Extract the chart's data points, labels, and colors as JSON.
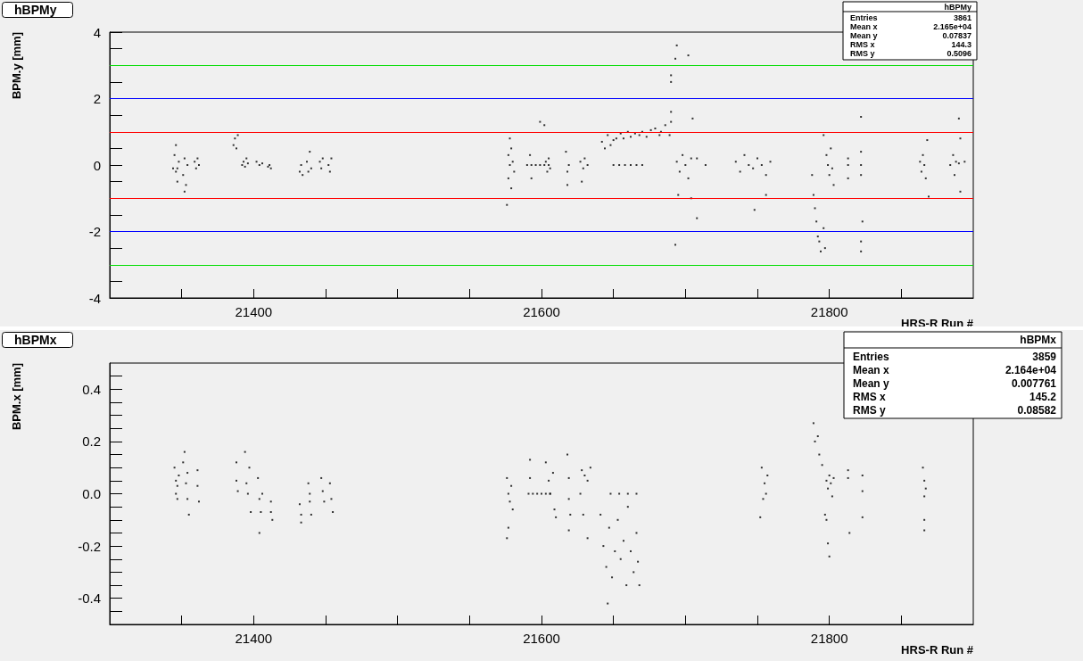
{
  "chart_data": [
    {
      "type": "scatter",
      "title": "hBPMy",
      "xlabel": "HRS-R Run #",
      "ylabel": "BPM.y [mm]",
      "marker": "square",
      "grid": false,
      "xlim": [
        21300,
        21900
      ],
      "xticks": [
        {
          "value": 21350,
          "label": null
        },
        21400,
        {
          "value": 21450,
          "label": null
        },
        {
          "value": 21500,
          "label": null
        },
        {
          "value": 21550,
          "label": null
        },
        21600,
        {
          "value": 21650,
          "label": null
        },
        {
          "value": 21700,
          "label": null
        },
        {
          "value": 21750,
          "label": null
        },
        21800,
        {
          "value": 21850,
          "label": null
        }
      ],
      "ylim": [
        -4,
        4
      ],
      "yticks": [
        -4,
        {
          "value": -3.5,
          "label": null
        },
        {
          "value": -3,
          "label": null
        },
        {
          "value": -2.5,
          "label": null
        },
        -2,
        {
          "value": -1.5,
          "label": null
        },
        {
          "value": -1,
          "label": null
        },
        {
          "value": -0.5,
          "label": null
        },
        0,
        {
          "value": 0.5,
          "label": null
        },
        {
          "value": 1,
          "label": null
        },
        {
          "value": 1.5,
          "label": null
        },
        2,
        {
          "value": 2.5,
          "label": null
        },
        {
          "value": 3,
          "label": null
        },
        {
          "value": 3.5,
          "label": null
        },
        4
      ],
      "ref_lines": [
        {
          "axis": "y",
          "value": 3,
          "color": "#00dd00"
        },
        {
          "axis": "y",
          "value": 2,
          "color": "#0000ff"
        },
        {
          "axis": "y",
          "value": 1,
          "color": "#ff0000"
        },
        {
          "axis": "y",
          "value": -1,
          "color": "#ff0000"
        },
        {
          "axis": "y",
          "value": -2,
          "color": "#0000ff"
        },
        {
          "axis": "y",
          "value": -3,
          "color": "#00dd00"
        }
      ],
      "annotations": [
        "hBPMy",
        "Entries",
        "3861",
        "Mean x",
        "2.165e+04",
        "Mean y",
        "0.07837",
        "RMS x",
        "144.3",
        "RMS y",
        "0.5096"
      ],
      "series": [
        {
          "color": "#000000",
          "x": [
            21344,
            21345,
            21346,
            21346,
            21347,
            21347,
            21348,
            21351,
            21352,
            21352,
            21353,
            21354,
            21359,
            21360,
            21361,
            21362,
            21386,
            21387,
            21388,
            21389,
            21392,
            21393,
            21394,
            21395,
            21396,
            21402,
            21404,
            21406,
            21410,
            21411,
            21412,
            21432,
            21433,
            21434,
            21437,
            21438,
            21439,
            21440,
            21446,
            21447,
            21448,
            21452,
            21453,
            21454,
            21576,
            21577,
            21577,
            21578,
            21578,
            21579,
            21579,
            21580,
            21581,
            21599,
            21602,
            21590,
            21593,
            21596,
            21599,
            21602,
            21605,
            21592,
            21593,
            21603,
            21604,
            21605,
            21606,
            21617,
            21618,
            21619,
            21618,
            21627,
            21629,
            21630,
            21632,
            21628,
            21642,
            21644,
            21646,
            21648,
            21650,
            21652,
            21655,
            21657,
            21660,
            21662,
            21665,
            21668,
            21670,
            21673,
            21676,
            21650,
            21654,
            21658,
            21662,
            21666,
            21670,
            21679,
            21682,
            21683,
            21686,
            21690,
            21690,
            21689,
            21693,
            21694,
            21702,
            21690,
            21690,
            21694,
            21696,
            21698,
            21700,
            21702,
            21704,
            21695,
            21704,
            21708,
            21693,
            21705,
            21708,
            21714,
            21735,
            21738,
            21741,
            21744,
            21747,
            21750,
            21753,
            21756,
            21759,
            21748,
            21756,
            21788,
            21789,
            21790,
            21791,
            21792,
            21793,
            21794,
            21796,
            21797,
            21796,
            21798,
            21799,
            21800,
            21801,
            21802,
            21803,
            21813,
            21813,
            21813,
            21822,
            21822,
            21822,
            21822,
            21823,
            21822,
            21822,
            21863,
            21864,
            21865,
            21866,
            21867,
            21868,
            21869,
            21884,
            21886,
            21887,
            21888,
            21890,
            21894,
            21890,
            21891,
            21891
          ],
          "values": [
            -0.1,
            0.3,
            -0.2,
            0.6,
            -0.1,
            -0.5,
            0.1,
            -0.3,
            -0.8,
            0.2,
            -0.6,
            0.0,
            0.1,
            -0.1,
            0.2,
            0.0,
            0.6,
            0.8,
            0.5,
            0.9,
            0.0,
            0.1,
            -0.05,
            0.2,
            0.05,
            0.1,
            0.0,
            0.05,
            -0.05,
            0.0,
            -0.1,
            -0.2,
            0.0,
            -0.3,
            0.1,
            -0.2,
            0.4,
            -0.1,
            0.1,
            -0.1,
            0.2,
            0.0,
            -0.2,
            0.2,
            -1.2,
            0.3,
            -0.4,
            0.8,
            0.0,
            -0.7,
            0.5,
            0.1,
            -0.2,
            1.3,
            1.2,
            0,
            0,
            0,
            0,
            0,
            0,
            0.3,
            -0.4,
            0.1,
            -0.2,
            0.2,
            -0.1,
            0.4,
            -0.2,
            0.0,
            -0.6,
            0.1,
            -0.1,
            0.2,
            0.0,
            -0.5,
            0.7,
            0.5,
            0.9,
            0.6,
            0.75,
            0.8,
            0.95,
            0.8,
            1.0,
            0.85,
            0.95,
            0.9,
            1.0,
            0.85,
            1.05,
            0,
            0,
            0,
            0,
            0,
            0,
            1.1,
            0.9,
            1.0,
            1.2,
            1.6,
            1.3,
            0.9,
            3.2,
            3.6,
            3.3,
            2.7,
            2.5,
            0.1,
            -0.2,
            0.3,
            0.0,
            -0.4,
            0.2,
            -0.9,
            -1.0,
            -1.6,
            -2.4,
            1.4,
            0.2,
            0.0,
            0.1,
            -0.2,
            0.3,
            0.0,
            -0.1,
            0.2,
            0.0,
            -0.3,
            0.1,
            -1.35,
            -0.9,
            -0.3,
            -0.9,
            -1.3,
            -1.7,
            -2.15,
            -2.3,
            -2.6,
            -1.9,
            -2.5,
            0.9,
            0.3,
            0.0,
            -0.3,
            0.5,
            -0.1,
            -0.6,
            0.2,
            -0.4,
            0.0,
            0.4,
            -0.3,
            0.0,
            1.45,
            -1.7,
            -2.3,
            -2.6,
            0.1,
            -0.2,
            0.3,
            0.0,
            -0.4,
            0.75,
            -0.95,
            0.0,
            0.3,
            -0.3,
            0.1,
            0.05,
            0.1,
            1.4,
            0.8,
            -0.8
          ]
        }
      ]
    },
    {
      "type": "scatter",
      "title": "hBPMx",
      "xlabel": "HRS-R Run #",
      "ylabel": "BPM.x [mm]",
      "marker": "square",
      "grid": false,
      "xlim": [
        21300,
        21900
      ],
      "xticks": [
        {
          "value": 21350,
          "label": null
        },
        21400,
        {
          "value": 21450,
          "label": null
        },
        {
          "value": 21500,
          "label": null
        },
        {
          "value": 21550,
          "label": null
        },
        21600,
        {
          "value": 21650,
          "label": null
        },
        {
          "value": 21700,
          "label": null
        },
        {
          "value": 21750,
          "label": null
        },
        21800,
        {
          "value": 21850,
          "label": null
        }
      ],
      "ylim": [
        -0.5,
        0.5
      ],
      "yticks": [
        {
          "value": -0.45,
          "label": null
        },
        -0.4,
        {
          "value": -0.35,
          "label": null
        },
        {
          "value": -0.3,
          "label": null
        },
        {
          "value": -0.25,
          "label": null
        },
        -0.2,
        {
          "value": -0.15,
          "label": null
        },
        {
          "value": -0.1,
          "label": null
        },
        {
          "value": -0.05,
          "label": null
        },
        {
          "value": 0,
          "label": "0.0"
        },
        {
          "value": 0.05,
          "label": null
        },
        {
          "value": 0.1,
          "label": null
        },
        {
          "value": 0.15,
          "label": null
        },
        0.2,
        {
          "value": 0.25,
          "label": null
        },
        {
          "value": 0.3,
          "label": null
        },
        {
          "value": 0.35,
          "label": null
        },
        0.4,
        {
          "value": 0.45,
          "label": null
        }
      ],
      "annotations": [
        "hBPMx",
        "Entries",
        "3859",
        "Mean x",
        "2.164e+04",
        "Mean y",
        "0.007761",
        "RMS x",
        "145.2",
        "RMS y",
        "0.08582"
      ],
      "series": [
        {
          "color": "#000000",
          "x": [
            21345,
            21346,
            21346,
            21347,
            21347,
            21348,
            21351,
            21352,
            21353,
            21354,
            21355,
            21354,
            21361,
            21361,
            21362,
            21388,
            21388,
            21389,
            21394,
            21395,
            21396,
            21397,
            21398,
            21403,
            21404,
            21405,
            21406,
            21404,
            21412,
            21412,
            21413,
            21432,
            21433,
            21433,
            21438,
            21439,
            21439,
            21440,
            21447,
            21448,
            21449,
            21453,
            21454,
            21455,
            21576,
            21577,
            21578,
            21579,
            21580,
            21577,
            21576,
            21591,
            21594,
            21597,
            21600,
            21603,
            21606,
            21592,
            21592,
            21603,
            21605,
            21606,
            21608,
            21609,
            21610,
            21618,
            21619,
            21619,
            21620,
            21619,
            21628,
            21630,
            21632,
            21634,
            21629,
            21632,
            21627,
            21641,
            21643,
            21645,
            21647,
            21649,
            21651,
            21653,
            21655,
            21657,
            21659,
            21660,
            21662,
            21664,
            21666,
            21667,
            21668,
            21648,
            21654,
            21660,
            21666,
            21646,
            21753,
            21755,
            21757,
            21756,
            21754,
            21752,
            21789,
            21790,
            21792,
            21793,
            21795,
            21797,
            21798,
            21798,
            21799,
            21800,
            21801,
            21802,
            21803,
            21799,
            21800,
            21813,
            21813,
            21814,
            21823,
            21823,
            21823,
            21865,
            21866,
            21867,
            21866,
            21866,
            21866
          ],
          "values": [
            0.1,
            0.05,
            0.0,
            -0.02,
            0.03,
            0.07,
            0.12,
            0.16,
            0.04,
            -0.02,
            -0.08,
            0.08,
            0.09,
            0.03,
            -0.03,
            0.12,
            0.05,
            0.01,
            0.16,
            0.04,
            0.0,
            0.1,
            -0.07,
            0.06,
            -0.02,
            -0.07,
            0.0,
            -0.15,
            -0.03,
            -0.07,
            -0.1,
            -0.04,
            -0.08,
            -0.11,
            0.04,
            0.0,
            -0.03,
            -0.08,
            0.06,
            0.01,
            -0.03,
            0.04,
            -0.02,
            -0.07,
            0.06,
            0.0,
            -0.03,
            0.03,
            -0.06,
            -0.13,
            -0.17,
            0,
            0,
            0,
            0,
            0,
            0,
            0.13,
            0.06,
            0.12,
            0.05,
            0.0,
            0.08,
            -0.06,
            -0.09,
            0.15,
            0.06,
            -0.02,
            -0.08,
            -0.14,
            0.09,
            0.07,
            0.05,
            0.1,
            -0.08,
            -0.17,
            0.0,
            -0.08,
            -0.2,
            -0.28,
            -0.13,
            -0.32,
            -0.22,
            -0.1,
            -0.25,
            -0.18,
            -0.35,
            -0.05,
            -0.22,
            -0.3,
            -0.15,
            -0.26,
            -0.35,
            0.0,
            0.0,
            0.0,
            0.0,
            -0.42,
            0.1,
            0.04,
            0.07,
            0.0,
            -0.02,
            -0.09,
            0.27,
            0.2,
            0.22,
            0.15,
            0.11,
            -0.08,
            -0.1,
            0.05,
            0.02,
            0.07,
            0.04,
            -0.01,
            0.06,
            -0.19,
            -0.24,
            0.09,
            0.06,
            -0.15,
            0.07,
            0.01,
            -0.09,
            0.1,
            0.05,
            0.02,
            -0.01,
            -0.14,
            -0.1
          ]
        }
      ]
    }
  ]
}
